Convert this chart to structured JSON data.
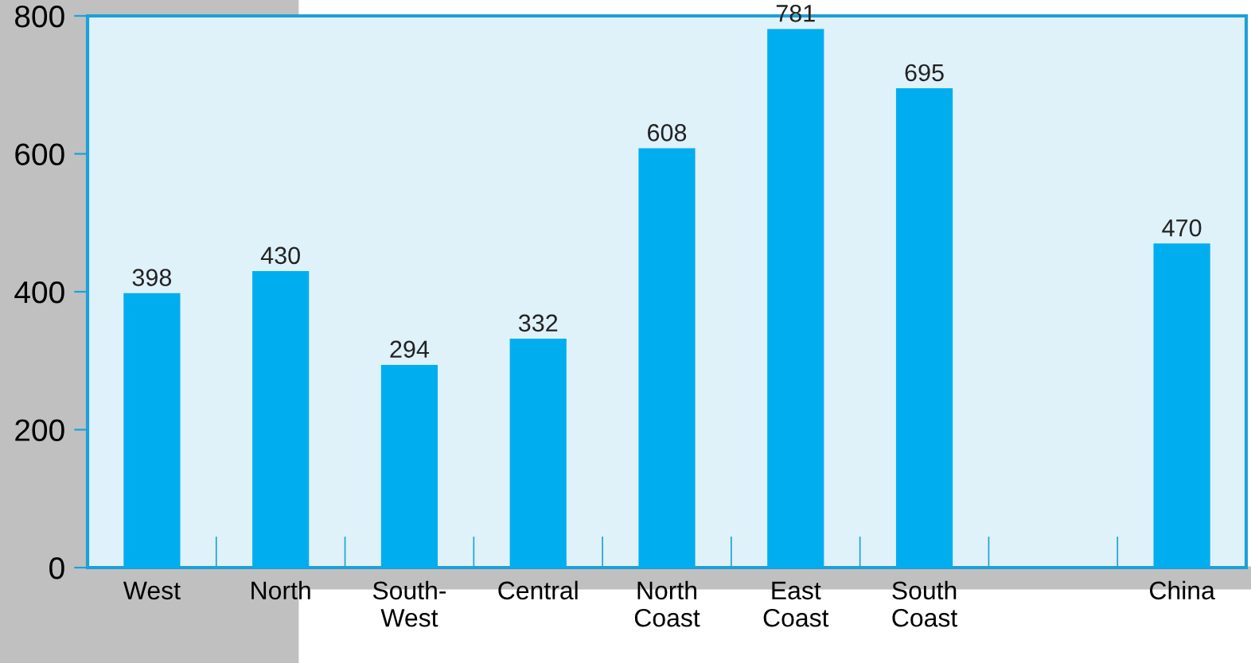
{
  "chart_data": {
    "type": "bar",
    "categories": [
      "West",
      "North",
      "South-\nWest",
      "Central",
      "North\nCoast",
      "East\nCoast",
      "South\nCoast",
      null,
      "China"
    ],
    "values": [
      398,
      430,
      294,
      332,
      608,
      781,
      695,
      null,
      470
    ],
    "color": "#00aeef",
    "ylim": [
      0,
      800
    ],
    "yticks": [
      0,
      200,
      400,
      600,
      800
    ],
    "data_labels": true,
    "grid": false,
    "legend": false
  }
}
